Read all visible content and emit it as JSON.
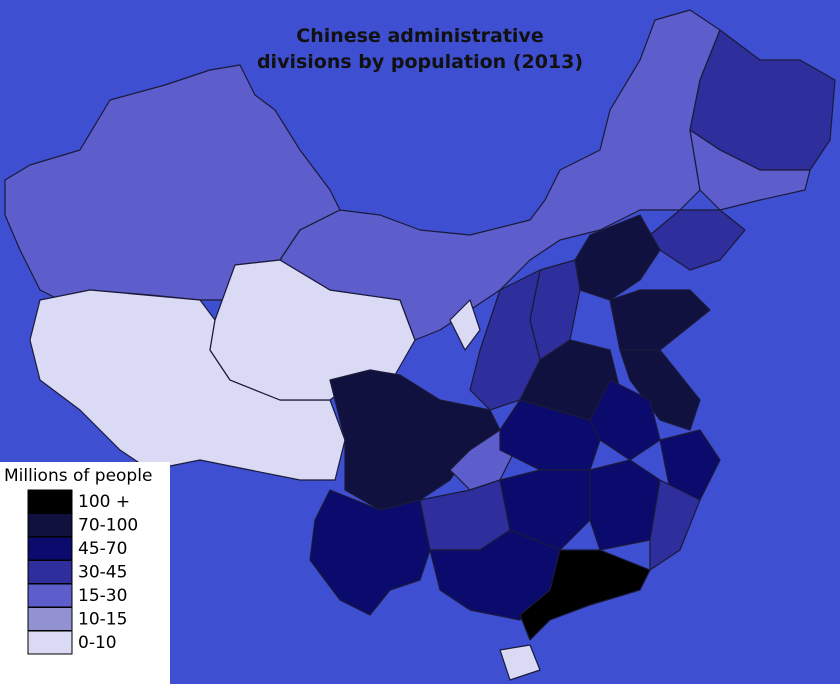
{
  "title": [
    "Chinese administrative",
    "divisions by population (2013)"
  ],
  "legend": {
    "title": "Millions of people",
    "items": [
      {
        "label": "100 +",
        "color": "#000000"
      },
      {
        "label": "70-100",
        "color": "#11113f"
      },
      {
        "label": "45-70",
        "color": "#0b0b6e"
      },
      {
        "label": "30-45",
        "color": "#2e2e9c"
      },
      {
        "label": "15-30",
        "color": "#5d5dcc"
      },
      {
        "label": "10-15",
        "color": "#9292d2"
      },
      {
        "label": "0-10",
        "color": "#dadaf5"
      }
    ]
  }
}
